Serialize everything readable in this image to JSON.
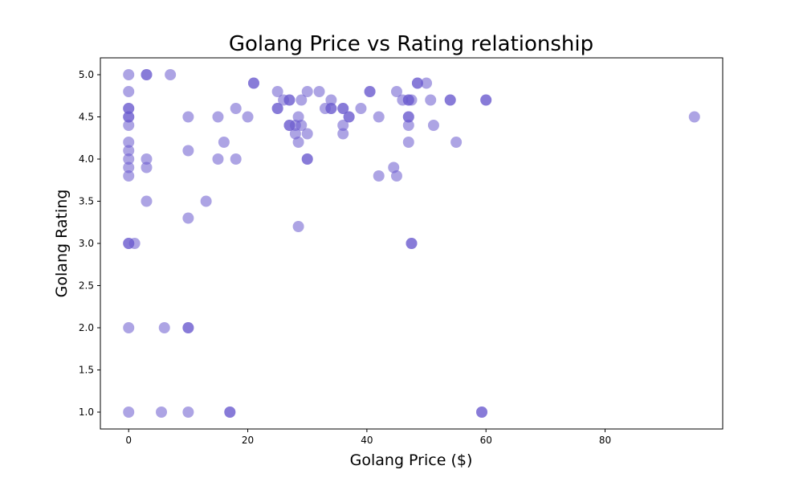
{
  "chart_data": {
    "type": "scatter",
    "title": "Golang Price vs Rating relationship",
    "xlabel": "Golang Price ($)",
    "ylabel": "Golang Rating",
    "xlim": [
      -4.75,
      99.75
    ],
    "ylim": [
      0.8,
      5.2
    ],
    "xticks": [
      0,
      20,
      40,
      60,
      80
    ],
    "xtick_labels": [
      "0",
      "20",
      "40",
      "60",
      "80"
    ],
    "yticks": [
      1.0,
      1.5,
      2.0,
      2.5,
      3.0,
      3.5,
      4.0,
      4.5,
      5.0
    ],
    "ytick_labels": [
      "1.0",
      "1.5",
      "2.0",
      "2.5",
      "3.0",
      "3.5",
      "4.0",
      "4.5",
      "5.0"
    ],
    "grid": false,
    "marker_color": "#6a5acd",
    "marker_alpha": 0.55,
    "points": [
      {
        "x": 0,
        "y": 5.0
      },
      {
        "x": 0,
        "y": 4.8
      },
      {
        "x": 0,
        "y": 4.6
      },
      {
        "x": 0,
        "y": 4.6
      },
      {
        "x": 0,
        "y": 4.5
      },
      {
        "x": 0,
        "y": 4.5
      },
      {
        "x": 0,
        "y": 4.4
      },
      {
        "x": 0,
        "y": 4.2
      },
      {
        "x": 0,
        "y": 4.1
      },
      {
        "x": 0,
        "y": 4.0
      },
      {
        "x": 0,
        "y": 3.9
      },
      {
        "x": 0,
        "y": 3.8
      },
      {
        "x": 0,
        "y": 3.0
      },
      {
        "x": 0,
        "y": 3.0
      },
      {
        "x": 0,
        "y": 2.0
      },
      {
        "x": 0,
        "y": 1.0
      },
      {
        "x": 1,
        "y": 3.0
      },
      {
        "x": 3,
        "y": 5.0
      },
      {
        "x": 3,
        "y": 5.0
      },
      {
        "x": 3,
        "y": 4.0
      },
      {
        "x": 3,
        "y": 3.9
      },
      {
        "x": 3,
        "y": 3.5
      },
      {
        "x": 7,
        "y": 5.0
      },
      {
        "x": 6,
        "y": 2.0
      },
      {
        "x": 5.5,
        "y": 1.0
      },
      {
        "x": 10,
        "y": 4.5
      },
      {
        "x": 10,
        "y": 4.1
      },
      {
        "x": 10,
        "y": 3.3
      },
      {
        "x": 10,
        "y": 2.0
      },
      {
        "x": 10,
        "y": 2.0
      },
      {
        "x": 10,
        "y": 1.0
      },
      {
        "x": 13,
        "y": 3.5
      },
      {
        "x": 15,
        "y": 4.5
      },
      {
        "x": 15,
        "y": 4.0
      },
      {
        "x": 16,
        "y": 4.2
      },
      {
        "x": 17,
        "y": 1.0
      },
      {
        "x": 17,
        "y": 1.0
      },
      {
        "x": 18,
        "y": 4.6
      },
      {
        "x": 18,
        "y": 4.0
      },
      {
        "x": 20,
        "y": 4.5
      },
      {
        "x": 21,
        "y": 4.9
      },
      {
        "x": 21,
        "y": 4.9
      },
      {
        "x": 25,
        "y": 4.8
      },
      {
        "x": 25,
        "y": 4.6
      },
      {
        "x": 25,
        "y": 4.6
      },
      {
        "x": 26,
        "y": 4.7
      },
      {
        "x": 27,
        "y": 4.7
      },
      {
        "x": 27,
        "y": 4.7
      },
      {
        "x": 27,
        "y": 4.4
      },
      {
        "x": 27,
        "y": 4.4
      },
      {
        "x": 28,
        "y": 4.4
      },
      {
        "x": 28,
        "y": 4.3
      },
      {
        "x": 28.5,
        "y": 4.2
      },
      {
        "x": 28.5,
        "y": 4.5
      },
      {
        "x": 28.5,
        "y": 3.2
      },
      {
        "x": 29,
        "y": 4.7
      },
      {
        "x": 29,
        "y": 4.4
      },
      {
        "x": 30,
        "y": 4.8
      },
      {
        "x": 30,
        "y": 4.3
      },
      {
        "x": 30,
        "y": 4.0
      },
      {
        "x": 30,
        "y": 4.0
      },
      {
        "x": 32,
        "y": 4.8
      },
      {
        "x": 33,
        "y": 4.6
      },
      {
        "x": 34,
        "y": 4.7
      },
      {
        "x": 34,
        "y": 4.6
      },
      {
        "x": 34,
        "y": 4.6
      },
      {
        "x": 36,
        "y": 4.6
      },
      {
        "x": 36,
        "y": 4.6
      },
      {
        "x": 36,
        "y": 4.4
      },
      {
        "x": 36,
        "y": 4.3
      },
      {
        "x": 37,
        "y": 4.5
      },
      {
        "x": 37,
        "y": 4.5
      },
      {
        "x": 39,
        "y": 4.6
      },
      {
        "x": 40.5,
        "y": 4.8
      },
      {
        "x": 40.5,
        "y": 4.8
      },
      {
        "x": 42,
        "y": 4.5
      },
      {
        "x": 42,
        "y": 3.8
      },
      {
        "x": 44.5,
        "y": 3.9
      },
      {
        "x": 45,
        "y": 4.8
      },
      {
        "x": 45,
        "y": 3.8
      },
      {
        "x": 46,
        "y": 4.7
      },
      {
        "x": 47,
        "y": 4.7
      },
      {
        "x": 47,
        "y": 4.7
      },
      {
        "x": 47,
        "y": 4.5
      },
      {
        "x": 47,
        "y": 4.5
      },
      {
        "x": 47,
        "y": 4.4
      },
      {
        "x": 47,
        "y": 4.2
      },
      {
        "x": 47.5,
        "y": 4.7
      },
      {
        "x": 47.5,
        "y": 3.0
      },
      {
        "x": 47.5,
        "y": 3.0
      },
      {
        "x": 48.5,
        "y": 4.9
      },
      {
        "x": 48.5,
        "y": 4.9
      },
      {
        "x": 50,
        "y": 4.9
      },
      {
        "x": 50.7,
        "y": 4.7
      },
      {
        "x": 51.2,
        "y": 4.4
      },
      {
        "x": 54,
        "y": 4.7
      },
      {
        "x": 54,
        "y": 4.7
      },
      {
        "x": 55,
        "y": 4.2
      },
      {
        "x": 59.3,
        "y": 1.0
      },
      {
        "x": 59.3,
        "y": 1.0
      },
      {
        "x": 60,
        "y": 4.7
      },
      {
        "x": 60,
        "y": 4.7
      },
      {
        "x": 95,
        "y": 4.5
      }
    ]
  }
}
